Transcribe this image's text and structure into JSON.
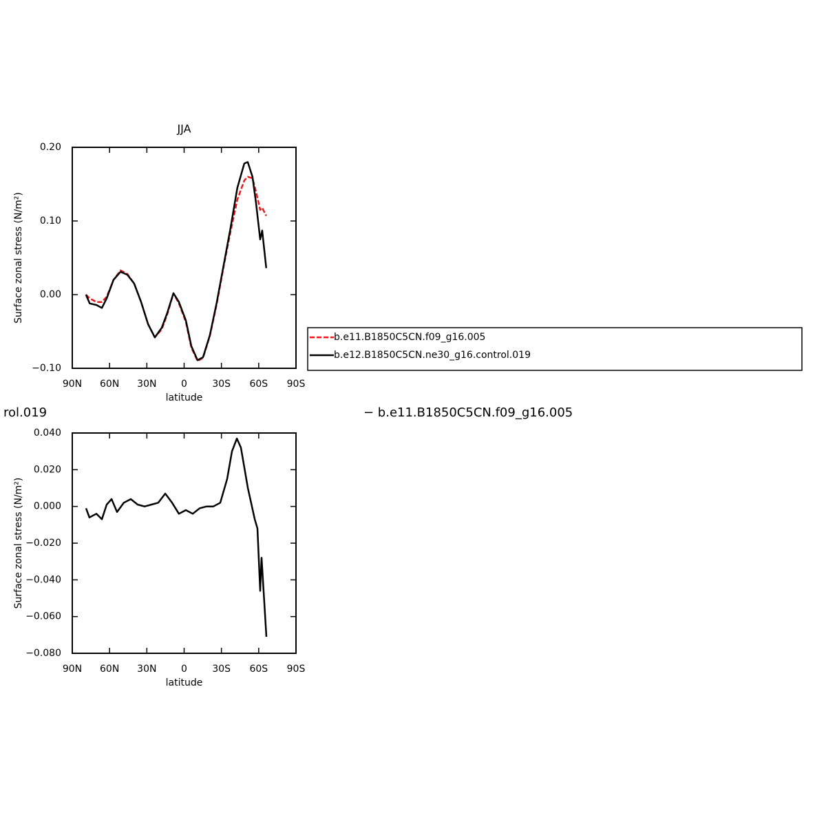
{
  "chart_data": [
    {
      "type": "line",
      "title": "JJA",
      "xlabel": "latitude",
      "ylabel": "Surface zonal stress (N/m²)",
      "xlim": [
        90,
        -90
      ],
      "xticks": [
        {
          "value": 90,
          "label": "90N"
        },
        {
          "value": 60,
          "label": "60N"
        },
        {
          "value": 30,
          "label": "30N"
        },
        0,
        {
          "value": -30,
          "label": "30S"
        },
        {
          "value": -60,
          "label": "60S"
        },
        {
          "value": -90,
          "label": "90S"
        }
      ],
      "ylim": [
        -0.1,
        0.2
      ],
      "yticks": [
        {
          "value": -0.1,
          "label": "−0.10"
        },
        {
          "value": 0,
          "label": "0.00"
        },
        {
          "value": 0.1,
          "label": "0.10"
        },
        {
          "value": 0.2,
          "label": "0.20"
        }
      ],
      "legend": "right",
      "x": [
        79,
        76,
        70.6,
        66.2,
        62.3,
        56.8,
        51.2,
        45.7,
        40.2,
        34.6,
        29,
        23.6,
        18,
        13.6,
        8.6,
        4.2,
        -1.4,
        -5.8,
        -10.8,
        -15.2,
        -20.7,
        -26.3,
        -31.8,
        -37.3,
        -42.8,
        -48.4,
        -51.2,
        -55,
        -57.8,
        -61.2,
        -62.8,
        -66.1
      ],
      "series": [
        {
          "name": "b.e11.B1850C5CN.f09_g16.005",
          "color": "#e8191d",
          "style": "dashed",
          "values": [
            0.0,
            -0.005,
            -0.01,
            -0.01,
            -0.003,
            0.02,
            0.033,
            0.028,
            0.015,
            -0.01,
            -0.04,
            -0.058,
            -0.047,
            -0.027,
            0.002,
            -0.012,
            -0.037,
            -0.072,
            -0.09,
            -0.086,
            -0.056,
            -0.012,
            0.038,
            0.085,
            0.129,
            0.155,
            0.16,
            0.158,
            0.14,
            0.115,
            0.118,
            0.107
          ]
        },
        {
          "name": "b.e12.B1850C5CN.ne30_g16.control.019",
          "color": "#000000",
          "style": "solid",
          "values": [
            0.0,
            -0.012,
            -0.014,
            -0.018,
            -0.005,
            0.02,
            0.031,
            0.027,
            0.015,
            -0.01,
            -0.04,
            -0.058,
            -0.045,
            -0.025,
            0.002,
            -0.01,
            -0.035,
            -0.07,
            -0.089,
            -0.085,
            -0.055,
            -0.01,
            0.04,
            0.09,
            0.145,
            0.178,
            0.18,
            0.16,
            0.125,
            0.075,
            0.087,
            0.036
          ]
        }
      ]
    },
    {
      "type": "line",
      "xlabel": "latitude",
      "ylabel": "Surface zonal stress (N/m²)",
      "annotations": [
        "rol.019",
        "− b.e11.B1850C5CN.f09_g16.005"
      ],
      "xlim": [
        90,
        -90
      ],
      "xticks": [
        {
          "value": 90,
          "label": "90N"
        },
        {
          "value": 60,
          "label": "60N"
        },
        {
          "value": 30,
          "label": "30N"
        },
        0,
        {
          "value": -30,
          "label": "30S"
        },
        {
          "value": -60,
          "label": "60S"
        },
        {
          "value": -90,
          "label": "90S"
        }
      ],
      "ylim": [
        -0.08,
        0.04
      ],
      "yticks": [
        {
          "value": -0.08,
          "label": "−0.080"
        },
        {
          "value": -0.06,
          "label": "−0.060"
        },
        {
          "value": -0.04,
          "label": "−0.040"
        },
        {
          "value": -0.02,
          "label": "−0.020"
        },
        {
          "value": 0,
          "label": "0.000"
        },
        {
          "value": 0.02,
          "label": "0.020"
        },
        {
          "value": 0.04,
          "label": "0.040"
        }
      ],
      "color": "#000000",
      "x": [
        78.9,
        76.2,
        70.6,
        66.2,
        62.3,
        58.4,
        54,
        48.5,
        42.9,
        37.4,
        31.8,
        26.3,
        20.8,
        15.2,
        9.7,
        4.2,
        -1.4,
        -6.9,
        -12.5,
        -18,
        -23.5,
        -29.1,
        -34.6,
        -38.5,
        -42.4,
        -45.7,
        -51.3,
        -56.8,
        -59,
        -61.2,
        -62.3,
        -66.2
      ],
      "values": [
        -0.001,
        -0.006,
        -0.004,
        -0.007,
        0.001,
        0.004,
        -0.003,
        0.002,
        0.004,
        0.001,
        0.0,
        0.001,
        0.002,
        0.007,
        0.002,
        -0.004,
        -0.002,
        -0.004,
        -0.001,
        0.0,
        0.0,
        0.002,
        0.015,
        0.03,
        0.037,
        0.032,
        0.01,
        -0.007,
        -0.012,
        -0.046,
        -0.028,
        -0.071
      ]
    }
  ]
}
